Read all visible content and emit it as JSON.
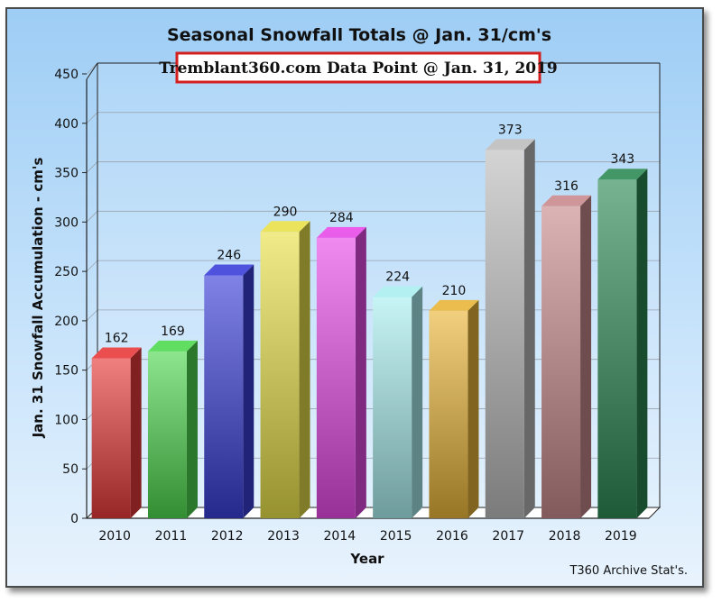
{
  "chart_data": {
    "type": "bar",
    "title": "Seasonal Snowfall Totals @ Jan. 31/cm's",
    "subtitle": "Tremblant360.com Data Point @ Jan. 31, 2019",
    "xlabel": "Year",
    "ylabel": "Jan. 31 Snowfall Accumulation - cm's",
    "credit": "T360 Archive Stat's.",
    "ylim": [
      0,
      450
    ],
    "yticks": [
      0,
      50,
      100,
      150,
      200,
      250,
      300,
      350,
      400,
      450
    ],
    "grid": true,
    "categories": [
      "2010",
      "2011",
      "2012",
      "2013",
      "2014",
      "2015",
      "2016",
      "2017",
      "2018",
      "2019"
    ],
    "values": [
      162,
      169,
      246,
      290,
      284,
      224,
      210,
      373,
      316,
      343
    ],
    "colors": [
      "#e83a3a",
      "#4fd94f",
      "#3b3fd8",
      "#e9e04a",
      "#e84be8",
      "#a9eef0",
      "#e9b53a",
      "#bdbdbd",
      "#c98a8c",
      "#2e8a55"
    ],
    "subtitle_border_color": "#d41f1f"
  }
}
